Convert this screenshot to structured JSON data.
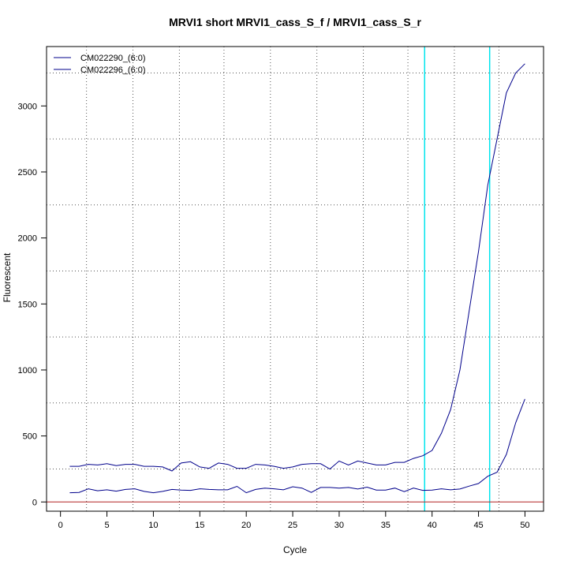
{
  "chart_data": {
    "type": "line",
    "title": "MRVI1 short MRVI1_cass_S_f / MRVI1_cass_S_r",
    "xlabel": "Cycle",
    "ylabel": "Fluorescent",
    "xlim": [
      -1.5,
      52
    ],
    "ylim": [
      -70,
      3450
    ],
    "x_ticks": [
      0,
      5,
      10,
      15,
      20,
      25,
      30,
      35,
      40,
      45,
      50
    ],
    "y_ticks": [
      0,
      500,
      1000,
      1500,
      2000,
      2500,
      3000
    ],
    "grid": true,
    "grid_x": [
      2.8,
      7.8,
      12.8,
      17.6,
      22.6,
      27.6,
      32.6,
      37.4,
      42.4,
      47.2
    ],
    "grid_y": [
      250,
      750,
      1250,
      1750,
      2250,
      2750,
      3250
    ],
    "baseline_y": 0,
    "baseline_color": "#b22222",
    "threshold_lines_x": [
      39.2,
      46.2
    ],
    "threshold_color": "#00e5ee",
    "legend": {
      "placement": "top-left"
    },
    "series": [
      {
        "name": "CM022290_(6:0)",
        "color": "#00008b",
        "x": [
          1,
          2,
          3,
          4,
          5,
          6,
          7,
          8,
          9,
          10,
          11,
          12,
          13,
          14,
          15,
          16,
          17,
          18,
          19,
          20,
          21,
          22,
          23,
          24,
          25,
          26,
          27,
          28,
          29,
          30,
          31,
          32,
          33,
          34,
          35,
          36,
          37,
          38,
          39,
          40,
          41,
          42,
          43,
          44,
          45,
          46,
          47,
          48,
          49,
          50
        ],
        "values": [
          270,
          270,
          285,
          280,
          290,
          275,
          285,
          285,
          270,
          270,
          265,
          235,
          295,
          305,
          265,
          255,
          295,
          285,
          255,
          255,
          285,
          280,
          270,
          255,
          265,
          285,
          290,
          290,
          250,
          310,
          280,
          310,
          295,
          280,
          280,
          300,
          300,
          330,
          350,
          390,
          520,
          700,
          1000,
          1450,
          1900,
          2400,
          2750,
          3100,
          3250,
          3320
        ]
      },
      {
        "name": "CM022296_(6:0)",
        "color": "#00008b",
        "x": [
          1,
          2,
          3,
          4,
          5,
          6,
          7,
          8,
          9,
          10,
          11,
          12,
          13,
          14,
          15,
          16,
          17,
          18,
          19,
          20,
          21,
          22,
          23,
          24,
          25,
          26,
          27,
          28,
          29,
          30,
          31,
          32,
          33,
          34,
          35,
          36,
          37,
          38,
          39,
          40,
          41,
          42,
          43,
          44,
          45,
          46,
          47,
          48,
          49,
          50
        ],
        "values": [
          70,
          72,
          100,
          85,
          92,
          82,
          95,
          100,
          80,
          70,
          80,
          95,
          90,
          88,
          100,
          95,
          92,
          92,
          118,
          70,
          95,
          105,
          100,
          92,
          115,
          105,
          72,
          110,
          110,
          105,
          110,
          98,
          112,
          90,
          90,
          105,
          78,
          105,
          88,
          90,
          100,
          92,
          98,
          120,
          140,
          195,
          225,
          360,
          600,
          780
        ]
      }
    ]
  }
}
